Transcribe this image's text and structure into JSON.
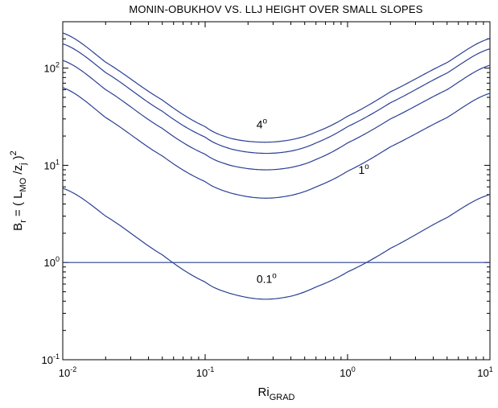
{
  "chart_data": {
    "type": "line",
    "title": "MONIN-OBUKHOV VS. LLJ HEIGHT OVER SMALL SLOPES",
    "xlabel": {
      "main": "Ri",
      "sub": "GRAD"
    },
    "ylabel": {
      "lead": "B",
      "lead_sub": "r",
      "mid": " = ( L",
      "mid_sub": "MO",
      "slash": " /z",
      "slash_sub": "j",
      "close": " )",
      "sup": "2"
    },
    "xscale": "log",
    "yscale": "log",
    "xlim": [
      0.01,
      10
    ],
    "ylim": [
      0.1,
      300
    ],
    "grid": false,
    "line_color": "#2b3f94",
    "x_ticks": [
      {
        "value": 0.01,
        "base": "10",
        "exp": "-2"
      },
      {
        "value": 0.1,
        "base": "10",
        "exp": "-1"
      },
      {
        "value": 1,
        "base": "10",
        "exp": "0"
      },
      {
        "value": 10,
        "base": "10",
        "exp": "1"
      }
    ],
    "y_ticks": [
      {
        "value": 0.1,
        "base": "10",
        "exp": "-1"
      },
      {
        "value": 1,
        "base": "10",
        "exp": "0"
      },
      {
        "value": 10,
        "base": "10",
        "exp": "1"
      },
      {
        "value": 100,
        "base": "10",
        "exp": "2"
      }
    ],
    "x": [
      0.01,
      0.02,
      0.05,
      0.1,
      0.15,
      0.25,
      0.4,
      0.6,
      1.0,
      2.0,
      5.0,
      10.0
    ],
    "series": [
      {
        "values": [
          5.8,
          3.0,
          1.2,
          0.63,
          0.48,
          0.42,
          0.45,
          0.56,
          0.8,
          1.4,
          2.9,
          5.0
        ]
      },
      {
        "values": [
          63,
          31,
          12.5,
          6.8,
          5.2,
          4.6,
          4.9,
          6.0,
          8.7,
          15.5,
          31,
          55
        ]
      },
      {
        "values": [
          120,
          60,
          24,
          13,
          10,
          9,
          9.5,
          11.5,
          17,
          30,
          60,
          107
        ]
      },
      {
        "values": [
          178,
          90,
          36,
          19.5,
          14.8,
          13.3,
          14,
          17,
          25,
          44,
          89,
          158
        ]
      },
      {
        "values": [
          230,
          115,
          47,
          25,
          19,
          17.3,
          18.3,
          22,
          32,
          57,
          114,
          202
        ]
      },
      {
        "values": [
          1,
          1,
          1,
          1,
          1,
          1,
          1,
          1,
          1,
          1,
          1,
          1
        ]
      }
    ],
    "annotations": [
      {
        "text": "4",
        "sup": "o",
        "x": 0.25,
        "y": 24
      },
      {
        "text": "1",
        "sup": "o",
        "x": 1.3,
        "y": 8.2
      },
      {
        "text": "0.1",
        "sup": "o",
        "x": 0.27,
        "y": 0.62
      }
    ]
  }
}
